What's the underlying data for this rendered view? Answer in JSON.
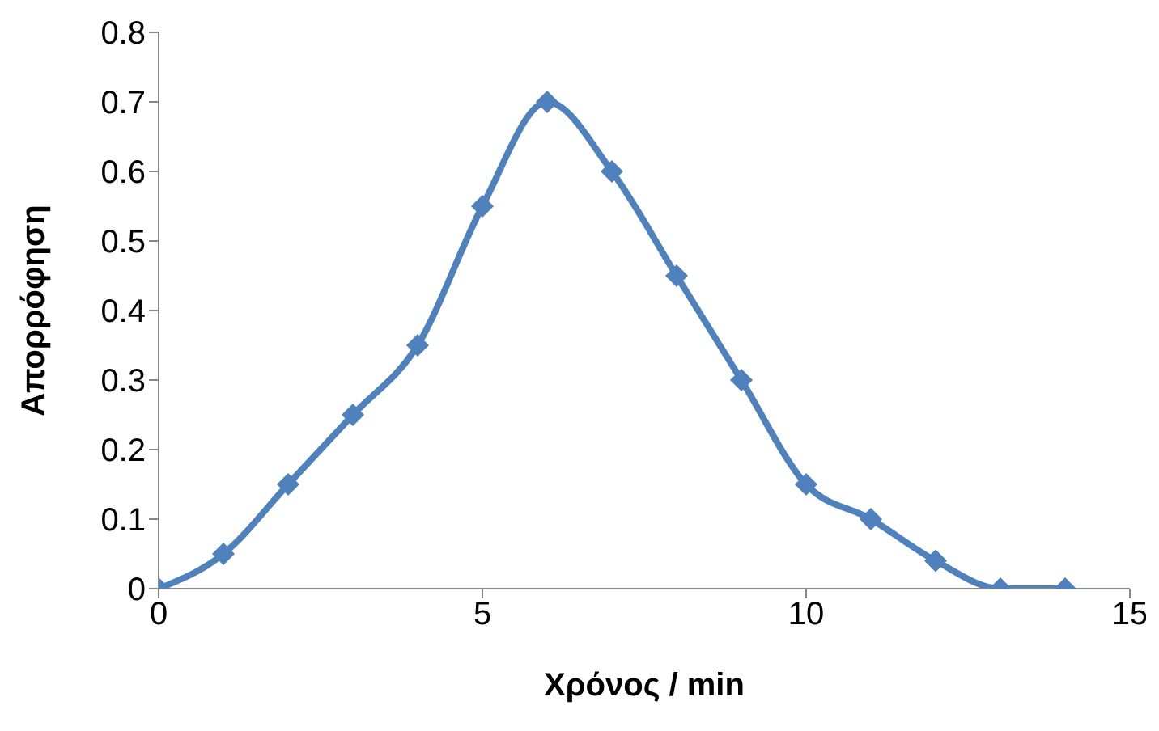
{
  "chart_data": {
    "type": "line",
    "xlabel": "Χρόνος / min",
    "ylabel": "Απορρόφηση",
    "x": [
      0,
      1,
      2,
      3,
      4,
      5,
      6,
      7,
      8,
      9,
      10,
      11,
      12,
      13,
      14
    ],
    "series": [
      {
        "color": "#4f81bd",
        "values": [
          0,
          0.05,
          0.15,
          0.25,
          0.35,
          0.55,
          0.7,
          0.6,
          0.45,
          0.3,
          0.15,
          0.1,
          0.04,
          0,
          0
        ]
      }
    ],
    "xlim": [
      0,
      15
    ],
    "xticks": [
      0,
      5,
      10,
      15
    ],
    "ylim": [
      0,
      0.8
    ],
    "yticks": [
      0,
      0.1,
      0.2,
      0.3,
      0.4,
      0.5,
      0.6,
      0.7,
      0.8
    ],
    "grid": false,
    "legend": false,
    "marker": "diamond",
    "line_style": "solid"
  }
}
